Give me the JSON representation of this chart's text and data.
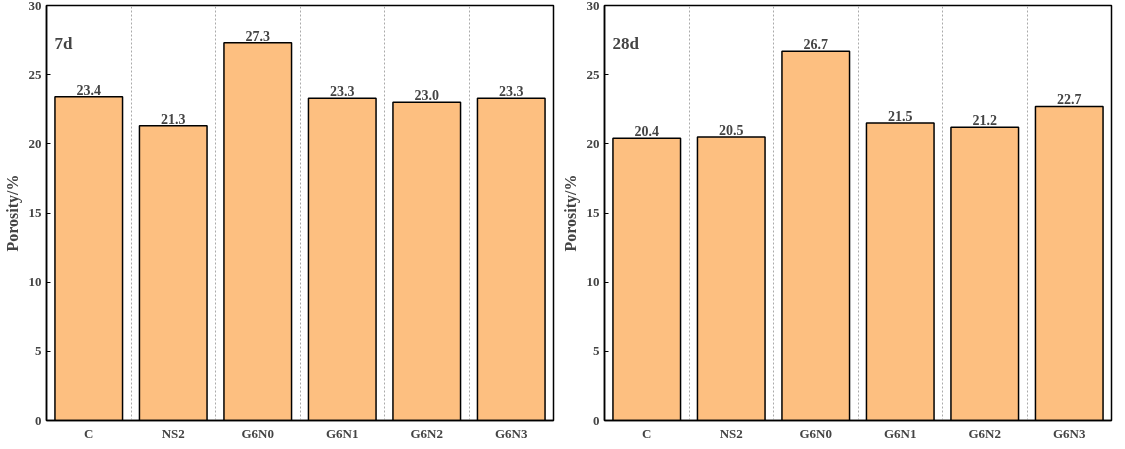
{
  "chart_data": [
    {
      "type": "bar",
      "title": "7d",
      "ylabel": "Porosity/%",
      "categories": [
        "C",
        "NS2",
        "G6N0",
        "G6N1",
        "G6N2",
        "G6N3"
      ],
      "values": [
        23.4,
        21.3,
        27.3,
        23.3,
        23.0,
        23.3
      ],
      "color": "#fdbf80",
      "ylim": [
        0,
        30
      ],
      "yticks": [
        0,
        5,
        10,
        15,
        20,
        25,
        30
      ],
      "grid": "x",
      "data_labels": true,
      "value_labels": [
        "23.4",
        "21.3",
        "27.3",
        "23.3",
        "23.0",
        "23.3"
      ]
    },
    {
      "type": "bar",
      "title": "28d",
      "ylabel": "Porosity/%",
      "categories": [
        "C",
        "NS2",
        "G6N0",
        "G6N1",
        "G6N2",
        "G6N3"
      ],
      "values": [
        20.4,
        20.5,
        26.7,
        21.5,
        21.2,
        22.7
      ],
      "color": "#fdbf80",
      "ylim": [
        0,
        30
      ],
      "yticks": [
        0,
        5,
        10,
        15,
        20,
        25,
        30
      ],
      "grid": "x",
      "data_labels": true,
      "value_labels": [
        "20.4",
        "20.5",
        "26.7",
        "21.5",
        "21.2",
        "22.7"
      ]
    }
  ]
}
